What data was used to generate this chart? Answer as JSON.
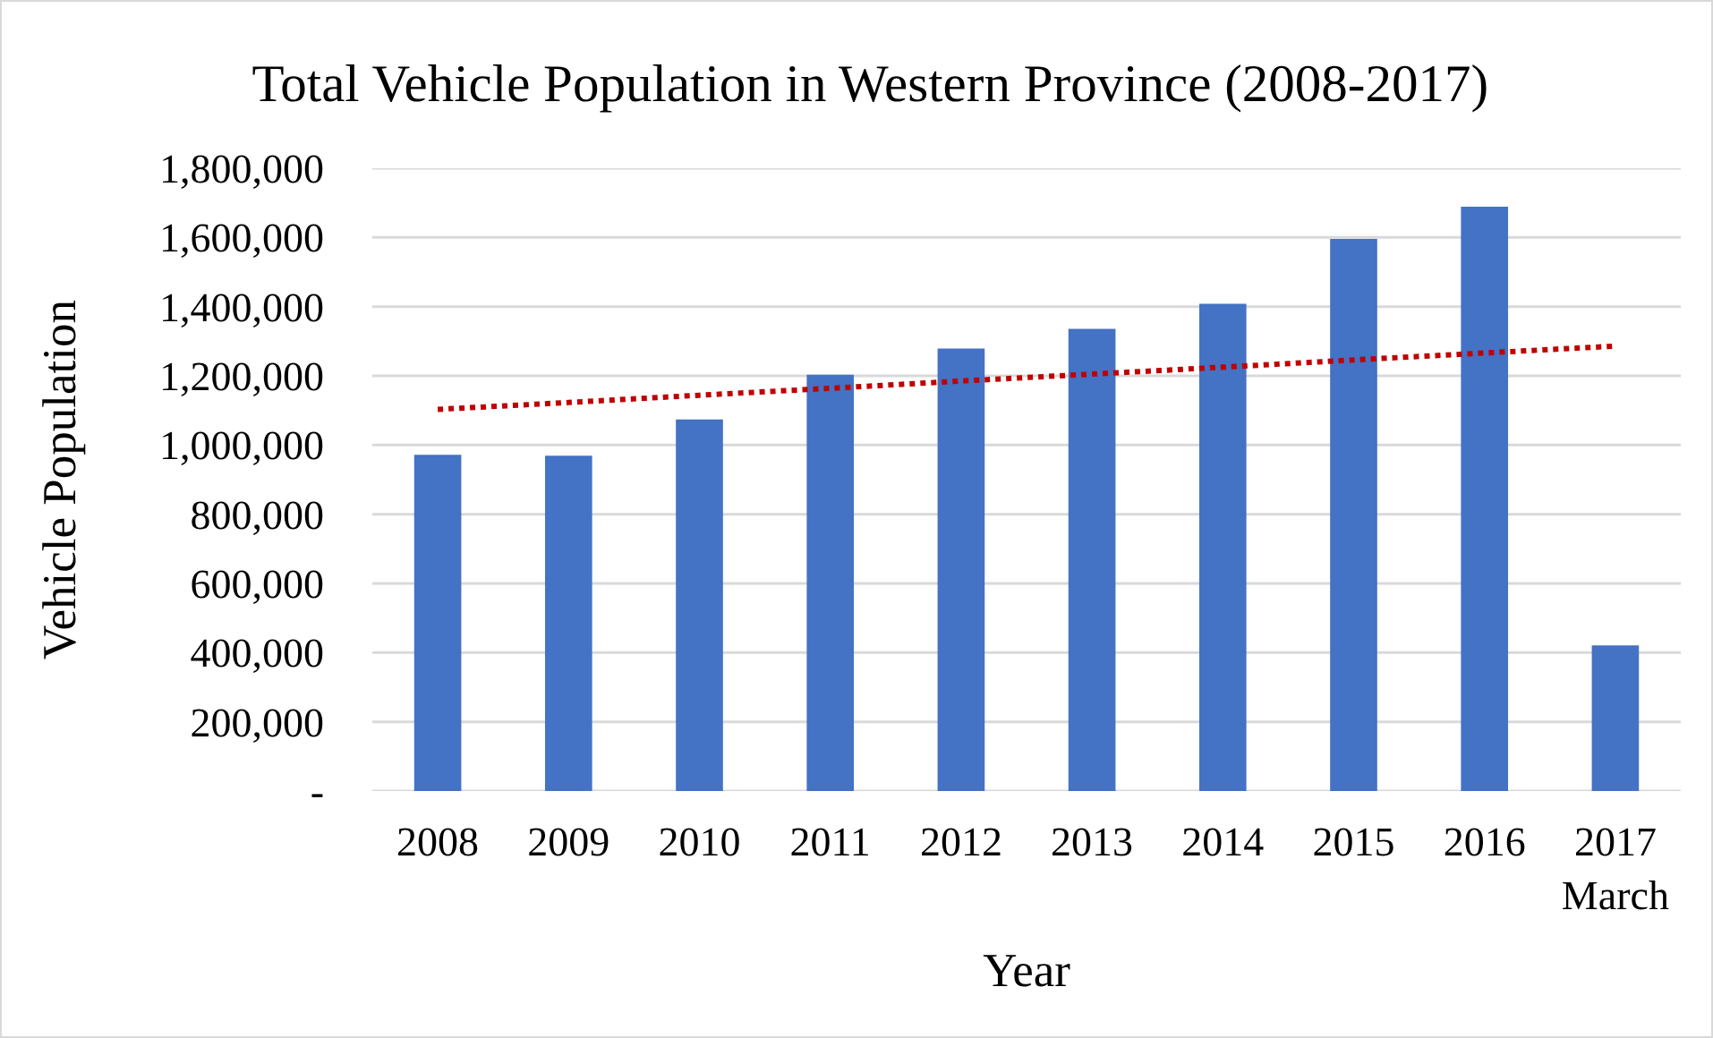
{
  "chart_data": {
    "type": "bar",
    "title": "Total Vehicle Population in Western Province (2008-2017)",
    "xlabel": "Year",
    "ylabel": "Vehicle Population",
    "categories": [
      "2008",
      "2009",
      "2010",
      "2011",
      "2012",
      "2013",
      "2014",
      "2015",
      "2016",
      "2017\nMarch"
    ],
    "series": [
      {
        "color": "#4472c4",
        "values": [
          972000,
          969000,
          1074000,
          1203000,
          1279000,
          1336000,
          1408000,
          1596000,
          1689000,
          421000
        ]
      },
      {
        "type": "line",
        "color": "#c00000",
        "line_style": "dotted",
        "values": [
          1103000,
          1123000,
          1144000,
          1164000,
          1185000,
          1205000,
          1225000,
          1246000,
          1266000,
          1286000
        ]
      }
    ],
    "ylim": [
      0,
      1800000
    ],
    "yticks": [
      {
        "value": 0,
        "label": "-"
      },
      {
        "value": 200000,
        "label": "200,000"
      },
      {
        "value": 400000,
        "label": "400,000"
      },
      {
        "value": 600000,
        "label": "600,000"
      },
      {
        "value": 800000,
        "label": "800,000"
      },
      {
        "value": 1000000,
        "label": "1,000,000"
      },
      {
        "value": 1200000,
        "label": "1,200,000"
      },
      {
        "value": 1400000,
        "label": "1,400,000"
      },
      {
        "value": 1600000,
        "label": "1,600,000"
      },
      {
        "value": 1800000,
        "label": "1,800,000"
      }
    ],
    "grid": "y"
  }
}
